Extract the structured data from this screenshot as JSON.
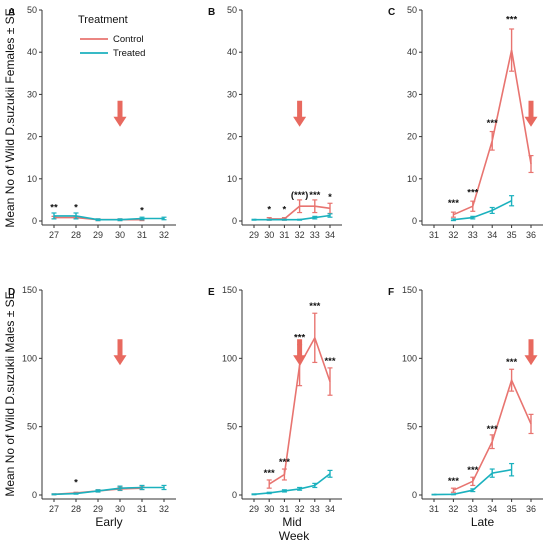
{
  "figure": {
    "y_label_top": "Mean No of Wild D.suzukii Females ± SE",
    "y_label_bottom": "Mean No of Wild D.suzukii Males ± SE",
    "x_label_shared": "Week",
    "legend": {
      "title": "Treatment",
      "items": [
        {
          "label": "Control",
          "color": "#e87470"
        },
        {
          "label": "Treated",
          "color": "#1bb1be"
        }
      ]
    }
  },
  "chart_data": [
    {
      "type": "line",
      "panel_label": "A",
      "xlabel": "",
      "ylim": [
        0,
        50
      ],
      "yticks": [
        0,
        10,
        20,
        30,
        40,
        50
      ],
      "x": [
        27,
        28,
        29,
        30,
        31,
        32
      ],
      "series": [
        {
          "name": "Control",
          "color": "#e87470",
          "x": [
            27,
            28,
            29,
            30,
            31
          ],
          "y": [
            0.8,
            0.8,
            0.3,
            0.3,
            0.3
          ],
          "err": [
            0.3,
            0.3,
            0.2,
            0.2,
            0.2
          ]
        },
        {
          "name": "Treated",
          "color": "#1bb1be",
          "x": [
            27,
            28,
            29,
            30,
            31,
            32
          ],
          "y": [
            1.2,
            1.2,
            0.3,
            0.3,
            0.6,
            0.6
          ],
          "err": [
            0.7,
            0.7,
            0.2,
            0.2,
            0.3,
            0.3
          ]
        }
      ],
      "annotations": [
        {
          "x": 27,
          "y": 2.5,
          "text": "**"
        },
        {
          "x": 28,
          "y": 2.5,
          "text": "*"
        },
        {
          "x": 31,
          "y": 1.8,
          "text": "*"
        }
      ],
      "arrow_at_x": 30
    },
    {
      "type": "line",
      "panel_label": "B",
      "xlabel": "",
      "ylim": [
        0,
        50
      ],
      "yticks": [
        0,
        10,
        20,
        30,
        40,
        50
      ],
      "x": [
        29,
        30,
        31,
        32,
        33,
        34
      ],
      "series": [
        {
          "name": "Control",
          "color": "#e87470",
          "x": [
            30,
            31,
            32,
            33,
            34
          ],
          "y": [
            0.5,
            0.5,
            3.5,
            3.5,
            3.0
          ],
          "err": [
            0.3,
            0.3,
            1.5,
            1.5,
            1.2
          ]
        },
        {
          "name": "Treated",
          "color": "#1bb1be",
          "x": [
            29,
            30,
            31,
            32,
            33,
            34
          ],
          "y": [
            0.3,
            0.3,
            0.3,
            0.3,
            0.8,
            1.3
          ],
          "err": [
            0.1,
            0.1,
            0.1,
            0.1,
            0.3,
            0.4
          ]
        }
      ],
      "annotations": [
        {
          "x": 30,
          "y": 2.0,
          "text": "*"
        },
        {
          "x": 31,
          "y": 2.0,
          "text": "*"
        },
        {
          "x": 32,
          "y": 5.5,
          "text": "(***)"
        },
        {
          "x": 33,
          "y": 5.5,
          "text": "***"
        },
        {
          "x": 34,
          "y": 5.0,
          "text": "*"
        }
      ],
      "arrow_at_x": 32
    },
    {
      "type": "line",
      "panel_label": "C",
      "xlabel": "",
      "ylim": [
        0,
        50
      ],
      "yticks": [
        0,
        10,
        20,
        30,
        40,
        50
      ],
      "x": [
        31,
        32,
        33,
        34,
        35,
        36
      ],
      "series": [
        {
          "name": "Control",
          "color": "#e87470",
          "x": [
            32,
            33,
            34,
            35,
            36
          ],
          "y": [
            1.5,
            3.5,
            19.0,
            40.5,
            13.5
          ],
          "err": [
            0.6,
            1.2,
            2.2,
            5.0,
            2.0
          ]
        },
        {
          "name": "Treated",
          "color": "#1bb1be",
          "x": [
            32,
            33,
            34,
            35
          ],
          "y": [
            0.3,
            0.8,
            2.5,
            4.8
          ],
          "err": [
            0.2,
            0.3,
            0.7,
            1.2
          ]
        }
      ],
      "annotations": [
        {
          "x": 32,
          "y": 3.5,
          "text": "***"
        },
        {
          "x": 33,
          "y": 6.0,
          "text": "***"
        },
        {
          "x": 34,
          "y": 22.5,
          "text": "***"
        },
        {
          "x": 35,
          "y": 47.0,
          "text": "***"
        }
      ],
      "arrow_at_x": 36
    },
    {
      "type": "line",
      "panel_label": "D",
      "xlabel": "Early",
      "ylim": [
        0,
        150
      ],
      "yticks": [
        0,
        50,
        100,
        150
      ],
      "x": [
        27,
        28,
        29,
        30,
        31,
        32
      ],
      "series": [
        {
          "name": "Control",
          "color": "#e87470",
          "x": [
            27,
            28,
            29,
            30,
            31
          ],
          "y": [
            0.5,
            1.5,
            3.0,
            4.5,
            5.0
          ],
          "err": [
            0.3,
            0.5,
            0.8,
            1.2,
            1.0
          ]
        },
        {
          "name": "Treated",
          "color": "#1bb1be",
          "x": [
            27,
            28,
            29,
            30,
            31,
            32
          ],
          "y": [
            0.5,
            1.0,
            3.0,
            5.0,
            5.5,
            5.5
          ],
          "err": [
            0.3,
            0.4,
            0.8,
            1.5,
            1.5,
            1.5
          ]
        }
      ],
      "annotations": [
        {
          "x": 28,
          "y": 7.0,
          "text": "*"
        }
      ],
      "arrow_at_x": 30
    },
    {
      "type": "line",
      "panel_label": "E",
      "xlabel": "Mid",
      "ylim": [
        0,
        150
      ],
      "yticks": [
        0,
        50,
        100,
        150
      ],
      "x": [
        29,
        30,
        31,
        32,
        33,
        34
      ],
      "series": [
        {
          "name": "Control",
          "color": "#e87470",
          "x": [
            30,
            31,
            32,
            33,
            34
          ],
          "y": [
            8.0,
            15.0,
            95.0,
            115.0,
            83.0
          ],
          "err": [
            3.0,
            4.0,
            15.0,
            18.0,
            10.0
          ]
        },
        {
          "name": "Treated",
          "color": "#1bb1be",
          "x": [
            29,
            30,
            31,
            32,
            33,
            34
          ],
          "y": [
            0.5,
            1.5,
            3.0,
            4.5,
            7.0,
            15.5
          ],
          "err": [
            0.3,
            0.5,
            0.8,
            1.0,
            1.5,
            2.5
          ]
        }
      ],
      "annotations": [
        {
          "x": 30,
          "y": 14.0,
          "text": "***"
        },
        {
          "x": 31,
          "y": 22.0,
          "text": "***"
        },
        {
          "x": 32,
          "y": 113.0,
          "text": "***"
        },
        {
          "x": 33,
          "y": 136.0,
          "text": "***"
        },
        {
          "x": 34,
          "y": 96.0,
          "text": "***"
        }
      ],
      "arrow_at_x": 32
    },
    {
      "type": "line",
      "panel_label": "F",
      "xlabel": "Late",
      "ylim": [
        0,
        150
      ],
      "yticks": [
        0,
        50,
        100,
        150
      ],
      "x": [
        31,
        32,
        33,
        34,
        35,
        36
      ],
      "series": [
        {
          "name": "Control",
          "color": "#e87470",
          "x": [
            32,
            33,
            34,
            35,
            36
          ],
          "y": [
            3.5,
            10.0,
            39.0,
            84.0,
            52.0
          ],
          "err": [
            1.5,
            3.0,
            5.0,
            8.0,
            7.0
          ]
        },
        {
          "name": "Treated",
          "color": "#1bb1be",
          "x": [
            31,
            32,
            33,
            34,
            35
          ],
          "y": [
            0.3,
            0.5,
            3.5,
            16.0,
            18.5
          ],
          "err": [
            0.2,
            0.3,
            1.0,
            3.0,
            4.5
          ]
        }
      ],
      "annotations": [
        {
          "x": 32,
          "y": 8.0,
          "text": "***"
        },
        {
          "x": 33,
          "y": 16.0,
          "text": "***"
        },
        {
          "x": 34,
          "y": 46.0,
          "text": "***"
        },
        {
          "x": 35,
          "y": 95.0,
          "text": "***"
        }
      ],
      "arrow_at_x": 36
    }
  ]
}
